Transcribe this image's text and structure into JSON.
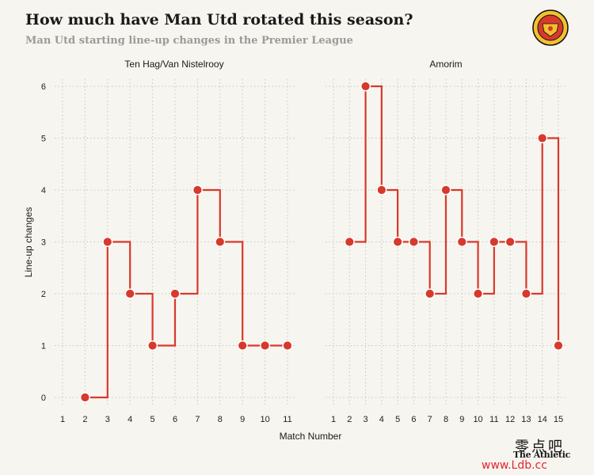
{
  "header": {
    "title": "How much have Man Utd rotated this season?",
    "subtitle": "Man Utd starting line-up changes in the Premier League"
  },
  "source": "The Athletic",
  "watermark": {
    "top": "零点吧",
    "bottom": "www.Ldb.cc"
  },
  "colors": {
    "line": "#d7392d",
    "grid": "#c9c6bf",
    "background": "#f7f5ef"
  },
  "chart_data": {
    "type": "line",
    "step": "post",
    "ylabel": "Line-up changes",
    "xlabel": "Match Number",
    "ylim": [
      0,
      6
    ],
    "yticks": [
      0,
      1,
      2,
      3,
      4,
      5,
      6
    ],
    "grid": true,
    "panels": [
      {
        "title": "Ten Hag/Van Nistelrooy",
        "xticks": [
          1,
          2,
          3,
          4,
          5,
          6,
          7,
          8,
          9,
          10,
          11
        ],
        "x": [
          2,
          3,
          4,
          5,
          6,
          7,
          8,
          9,
          10,
          11
        ],
        "y": [
          0,
          3,
          2,
          1,
          2,
          4,
          3,
          1,
          1,
          1
        ]
      },
      {
        "title": "Amorim",
        "xticks": [
          1,
          2,
          3,
          4,
          5,
          6,
          7,
          8,
          9,
          10,
          11,
          12,
          13,
          14,
          15
        ],
        "x": [
          2,
          3,
          4,
          5,
          6,
          7,
          8,
          9,
          10,
          11,
          12,
          13,
          14,
          15
        ],
        "y": [
          3,
          6,
          4,
          3,
          3,
          2,
          4,
          3,
          2,
          3,
          3,
          2,
          5,
          1
        ]
      }
    ]
  }
}
